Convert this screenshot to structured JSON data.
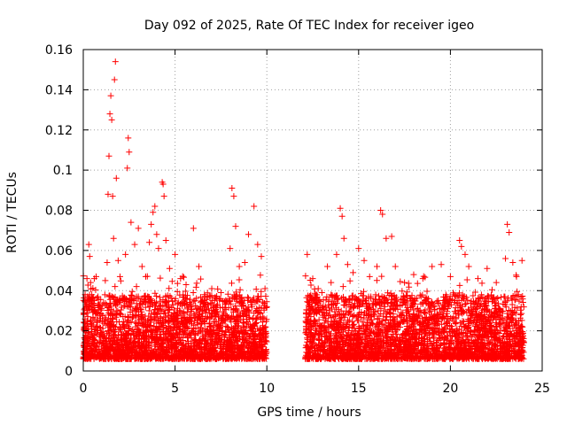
{
  "chart_data": {
    "type": "scatter",
    "title": "Day 092 of 2025, Rate Of TEC Index for receiver igeo",
    "xlabel": "GPS time / hours",
    "ylabel": "ROTI / TECUs",
    "xlim": [
      0,
      25
    ],
    "ylim": [
      0,
      0.16
    ],
    "xticks": [
      0,
      5,
      10,
      15,
      20,
      25
    ],
    "yticks": [
      0,
      0.02,
      0.04,
      0.06,
      0.08,
      0.1,
      0.12,
      0.14,
      0.16
    ],
    "xtick_labels": [
      "0",
      "5",
      "10",
      "15",
      "20",
      "25"
    ],
    "ytick_labels": [
      "0",
      "0.02",
      "0.04",
      "0.06",
      "0.08",
      "0.1",
      "0.12",
      "0.14",
      "0.16"
    ],
    "grid": true,
    "marker": "+",
    "color": "#ff0000",
    "x_ranges_with_data": [
      [
        0,
        10
      ],
      [
        12.1,
        24
      ]
    ],
    "points": [
      [
        0.1,
        0.038
      ],
      [
        0.2,
        0.046
      ],
      [
        0.3,
        0.063
      ],
      [
        0.35,
        0.057
      ],
      [
        0.4,
        0.044
      ],
      [
        0.5,
        0.033
      ],
      [
        0.6,
        0.046
      ],
      [
        0.7,
        0.047
      ],
      [
        0.8,
        0.037
      ],
      [
        1.0,
        0.031
      ],
      [
        1.2,
        0.045
      ],
      [
        1.3,
        0.054
      ],
      [
        1.35,
        0.088
      ],
      [
        1.4,
        0.107
      ],
      [
        1.45,
        0.128
      ],
      [
        1.5,
        0.137
      ],
      [
        1.55,
        0.125
      ],
      [
        1.6,
        0.087
      ],
      [
        1.65,
        0.066
      ],
      [
        1.7,
        0.145
      ],
      [
        1.75,
        0.154
      ],
      [
        1.8,
        0.096
      ],
      [
        1.9,
        0.055
      ],
      [
        2.0,
        0.047
      ],
      [
        2.3,
        0.058
      ],
      [
        2.4,
        0.101
      ],
      [
        2.45,
        0.116
      ],
      [
        2.5,
        0.109
      ],
      [
        2.6,
        0.074
      ],
      [
        2.8,
        0.063
      ],
      [
        3.0,
        0.071
      ],
      [
        3.2,
        0.052
      ],
      [
        3.4,
        0.047
      ],
      [
        3.6,
        0.064
      ],
      [
        3.7,
        0.073
      ],
      [
        3.8,
        0.079
      ],
      [
        3.9,
        0.082
      ],
      [
        4.0,
        0.068
      ],
      [
        4.1,
        0.061
      ],
      [
        4.3,
        0.094
      ],
      [
        4.35,
        0.093
      ],
      [
        4.4,
        0.087
      ],
      [
        4.5,
        0.065
      ],
      [
        4.7,
        0.051
      ],
      [
        5.0,
        0.058
      ],
      [
        5.3,
        0.046
      ],
      [
        5.6,
        0.043
      ],
      [
        6.0,
        0.071
      ],
      [
        6.3,
        0.052
      ],
      [
        6.6,
        0.038
      ],
      [
        7.0,
        0.041
      ],
      [
        7.5,
        0.039
      ],
      [
        8.0,
        0.061
      ],
      [
        8.1,
        0.091
      ],
      [
        8.2,
        0.087
      ],
      [
        8.3,
        0.072
      ],
      [
        8.5,
        0.052
      ],
      [
        8.8,
        0.054
      ],
      [
        9.0,
        0.068
      ],
      [
        9.3,
        0.082
      ],
      [
        9.5,
        0.063
      ],
      [
        9.7,
        0.057
      ],
      [
        9.9,
        0.041
      ],
      [
        12.2,
        0.058
      ],
      [
        12.5,
        0.046
      ],
      [
        12.8,
        0.041
      ],
      [
        13.0,
        0.039
      ],
      [
        13.3,
        0.052
      ],
      [
        13.5,
        0.044
      ],
      [
        13.8,
        0.058
      ],
      [
        14.0,
        0.081
      ],
      [
        14.1,
        0.077
      ],
      [
        14.2,
        0.066
      ],
      [
        14.4,
        0.053
      ],
      [
        14.7,
        0.049
      ],
      [
        15.0,
        0.061
      ],
      [
        15.3,
        0.055
      ],
      [
        15.6,
        0.047
      ],
      [
        16.0,
        0.052
      ],
      [
        16.2,
        0.08
      ],
      [
        16.3,
        0.078
      ],
      [
        16.5,
        0.066
      ],
      [
        16.8,
        0.067
      ],
      [
        17.0,
        0.052
      ],
      [
        17.5,
        0.044
      ],
      [
        18.0,
        0.048
      ],
      [
        18.5,
        0.046
      ],
      [
        19.0,
        0.052
      ],
      [
        19.5,
        0.053
      ],
      [
        20.0,
        0.047
      ],
      [
        20.5,
        0.065
      ],
      [
        20.6,
        0.062
      ],
      [
        20.8,
        0.058
      ],
      [
        21.0,
        0.052
      ],
      [
        21.5,
        0.046
      ],
      [
        22.0,
        0.051
      ],
      [
        22.5,
        0.044
      ],
      [
        23.0,
        0.056
      ],
      [
        23.1,
        0.073
      ],
      [
        23.2,
        0.069
      ],
      [
        23.4,
        0.054
      ],
      [
        23.6,
        0.047
      ],
      [
        23.9,
        0.055
      ]
    ]
  }
}
